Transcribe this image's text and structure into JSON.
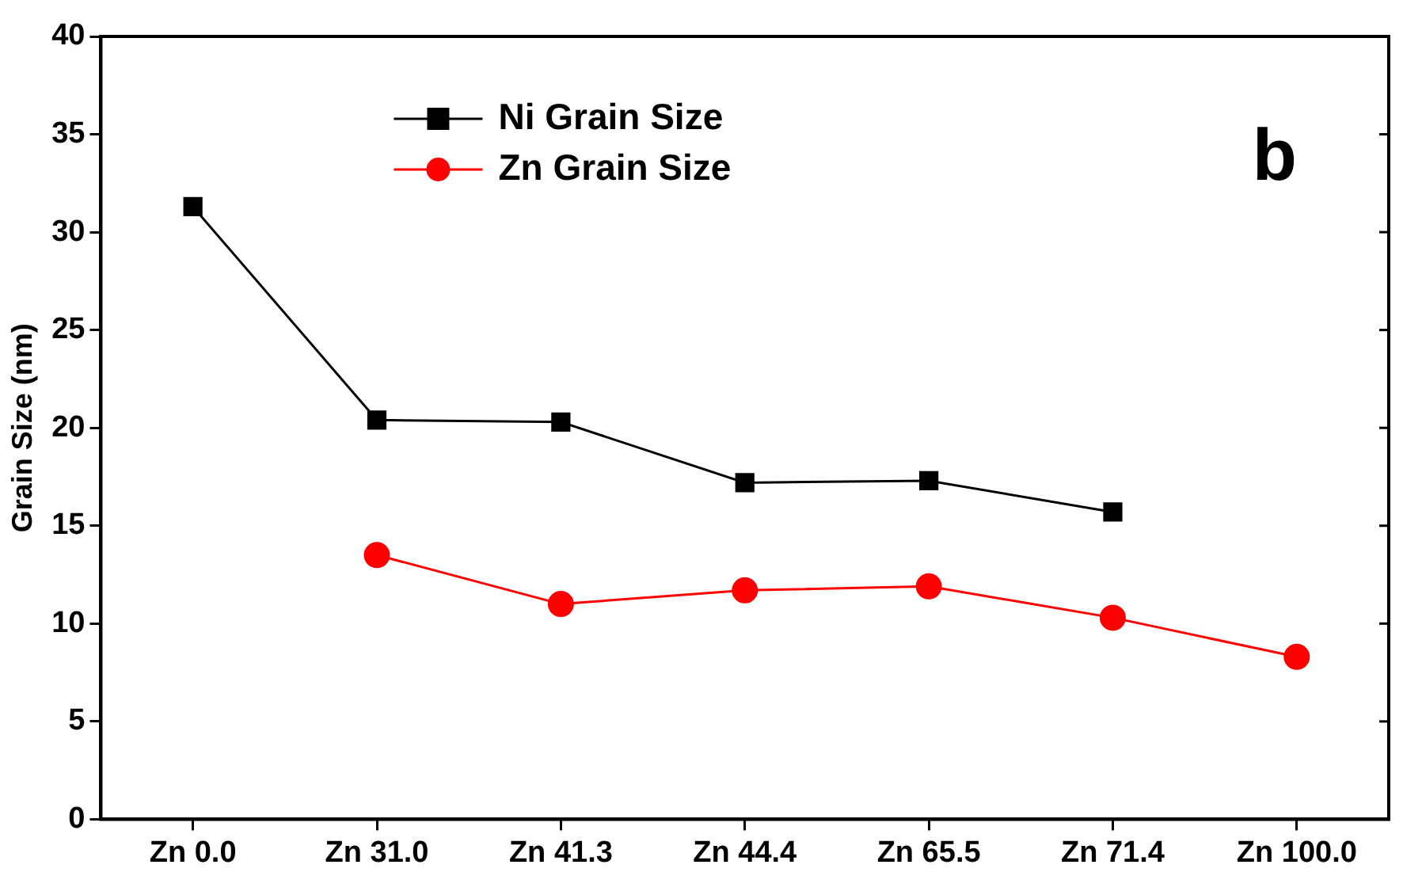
{
  "chart_data": {
    "type": "line",
    "ylabel": "Grain Size (nm)",
    "categories": [
      "Zn 0.0",
      "Zn 31.0",
      "Zn 41.3",
      "Zn 44.4",
      "Zn 65.5",
      "Zn 71.4",
      "Zn 100.0"
    ],
    "series": [
      {
        "name": "Ni Grain Size",
        "color": "#000000",
        "marker": "square",
        "values": [
          31.3,
          20.4,
          20.3,
          17.2,
          17.3,
          15.7,
          null
        ]
      },
      {
        "name": "Zn Grain Size",
        "color": "#ff0000",
        "marker": "circle",
        "values": [
          null,
          13.5,
          11.0,
          11.7,
          11.9,
          10.3,
          8.3
        ]
      }
    ],
    "ylim": [
      0,
      40
    ],
    "yticks": [
      0,
      5,
      10,
      15,
      20,
      25,
      30,
      35,
      40
    ],
    "grid": false,
    "legend": "top left",
    "annotations": [
      "b"
    ]
  }
}
